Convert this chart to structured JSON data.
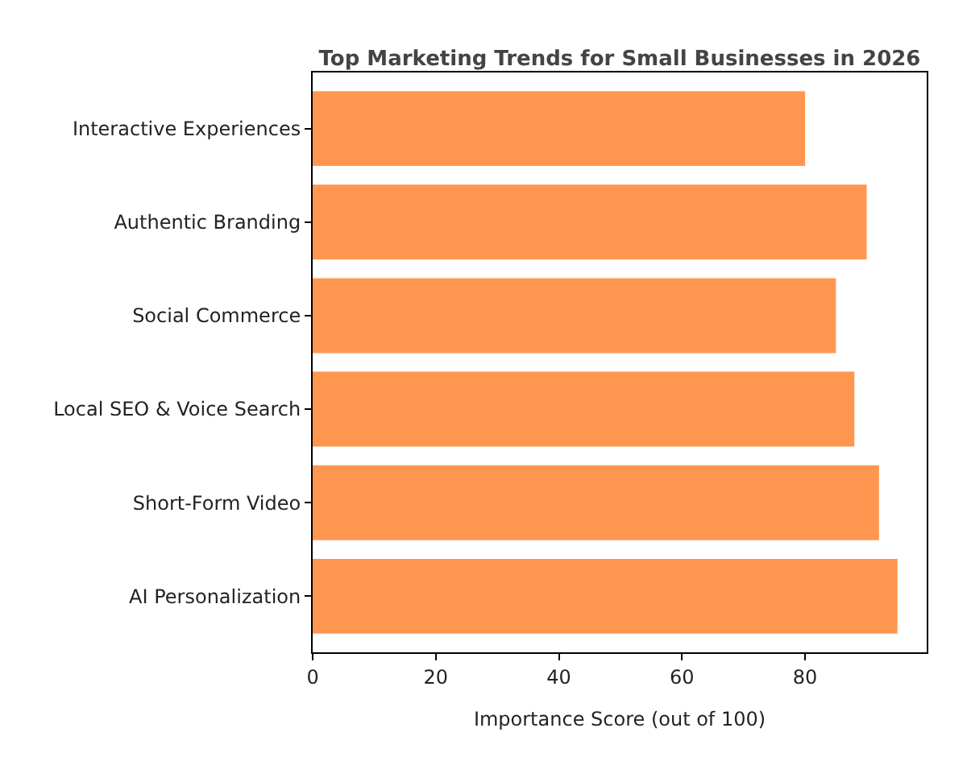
{
  "chart_data": {
    "type": "bar",
    "orientation": "horizontal",
    "title": "Top Marketing Trends for Small Businesses in 2026",
    "xlabel": "Importance Score (out of 100)",
    "categories": [
      "Interactive Experiences",
      "Authentic Branding",
      "Social Commerce",
      "Local SEO & Voice Search",
      "Short-Form Video",
      "AI Personalization"
    ],
    "values": [
      80,
      90,
      85,
      88,
      92,
      95
    ],
    "color": "#ff9650",
    "xlim": [
      0,
      99.75
    ],
    "xticks": [
      0,
      20,
      40,
      60,
      80
    ]
  }
}
